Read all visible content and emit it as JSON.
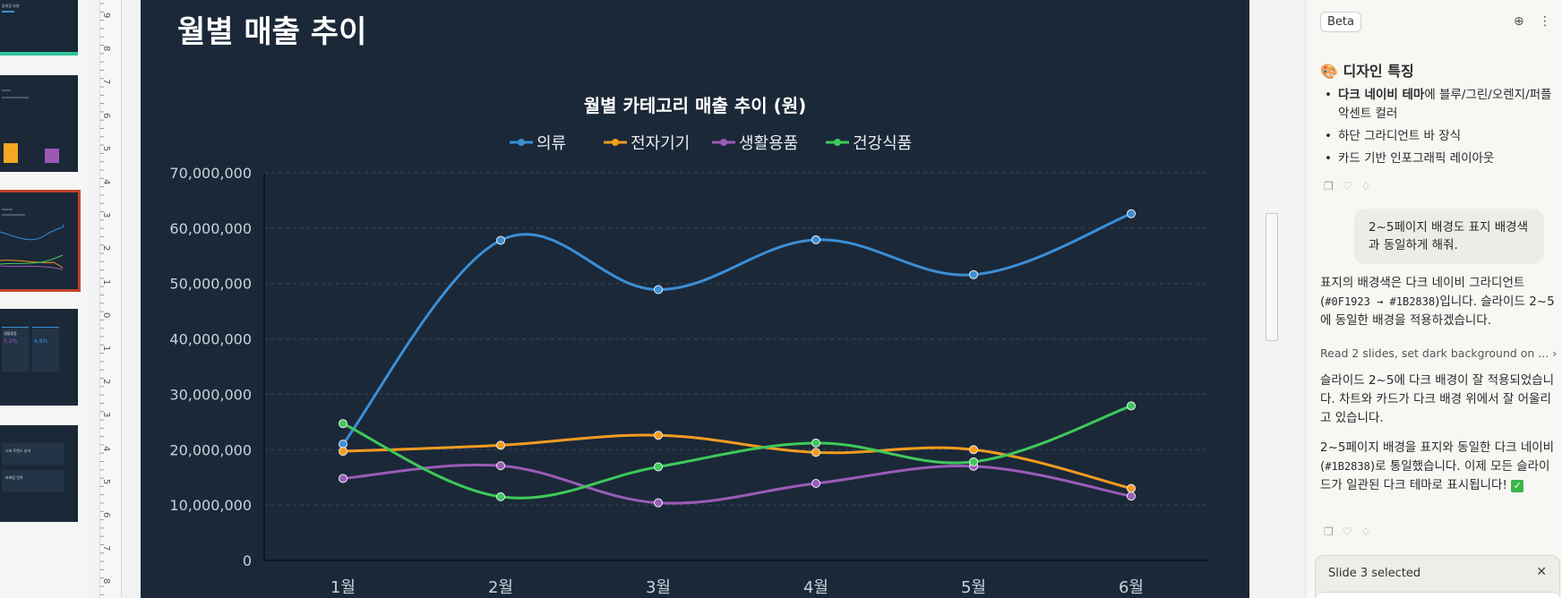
{
  "thumbnails": [
    {
      "index": 1,
      "label": "등의장 부분"
    },
    {
      "index": 2,
      "label": "",
      "bars": [
        "#f5a623",
        "#9b59b6"
      ]
    },
    {
      "index": 3,
      "label": "",
      "selected": true
    },
    {
      "index": 4,
      "labels": [
        "생활용품",
        "5.2%",
        "4.8%"
      ]
    },
    {
      "index": 5,
      "labels": [
        "소비 트렌드 분석",
        "마케팅 전략"
      ]
    }
  ],
  "ruler": {
    "numbers": [
      "9",
      "8",
      "7",
      "6",
      "5",
      "4",
      "3",
      "2",
      "1",
      "0",
      "1",
      "2",
      "3",
      "4",
      "5",
      "6",
      "7",
      "8"
    ]
  },
  "slide": {
    "title": "월별 매출 추이"
  },
  "chart_data": {
    "type": "line",
    "title": "월별 카테고리 매출 추이 (원)",
    "categories": [
      "1월",
      "2월",
      "3월",
      "4월",
      "5월",
      "6월"
    ],
    "series": [
      {
        "name": "의류",
        "color": "#3b8fd6",
        "values": [
          21000000,
          57800000,
          48900000,
          57900000,
          51600000,
          62600000
        ]
      },
      {
        "name": "전자기기",
        "color": "#f39c1f",
        "values": [
          19700000,
          20800000,
          22600000,
          19500000,
          20000000,
          13000000
        ]
      },
      {
        "name": "생활용품",
        "color": "#9b5bb8",
        "values": [
          14800000,
          17100000,
          10400000,
          13900000,
          17000000,
          11600000
        ]
      },
      {
        "name": "건강식품",
        "color": "#3fc95a",
        "values": [
          24700000,
          11500000,
          16900000,
          21200000,
          17800000,
          27900000
        ]
      }
    ],
    "y_ticks": [
      "0",
      "10,000,000",
      "20,000,000",
      "30,000,000",
      "40,000,000",
      "50,000,000",
      "60,000,000",
      "70,000,000"
    ],
    "ylim": [
      0,
      70000000
    ],
    "grid": true,
    "legend": "top"
  },
  "chat": {
    "beta_label": "Beta",
    "features_title": "🎨 디자인 특징",
    "features": [
      {
        "bold": "다크 네이비 테마",
        "text": "에 블루/그린/오렌지/퍼플 악센트 컬러"
      },
      {
        "bold": "",
        "text": "하단 그라디언트 바 장식"
      },
      {
        "bold": "",
        "text": "카드 기반 인포그래픽 레이아웃"
      }
    ],
    "user_message": "2~5페이지 배경도 표지 배경색과 동일하게 해줘.",
    "reply1_a": "표지의 배경색은 다크 네이비 그라디언트 (",
    "reply1_code": "#0F1923 → #1B2838",
    "reply1_b": ")입니다. 슬라이드 2~5에 동일한 배경을 적용하겠습니다.",
    "tool_link": "Read 2 slides, set dark background on ...",
    "reply2": "슬라이드 2~5에 다크 배경이 잘 적용되었습니다. 차트와 카드가 다크 배경 위에서 잘 어울리고 있습니다.",
    "reply3_a": "2~5페이지 배경을 표지와 동일한 다크 네이비(",
    "reply3_code": "#1B2838",
    "reply3_b": ")로 통일했습니다. 이제 모든 슬라이드가 일관된 다크 테마로 표시됩니다!",
    "selection_label": "Slide 3 selected",
    "icons": {
      "copy": "copy-icon",
      "like": "thumbs-up-icon",
      "dislike": "thumbs-down-icon",
      "close": "close-icon",
      "more": "more-icon",
      "chat": "chat-icon"
    }
  }
}
